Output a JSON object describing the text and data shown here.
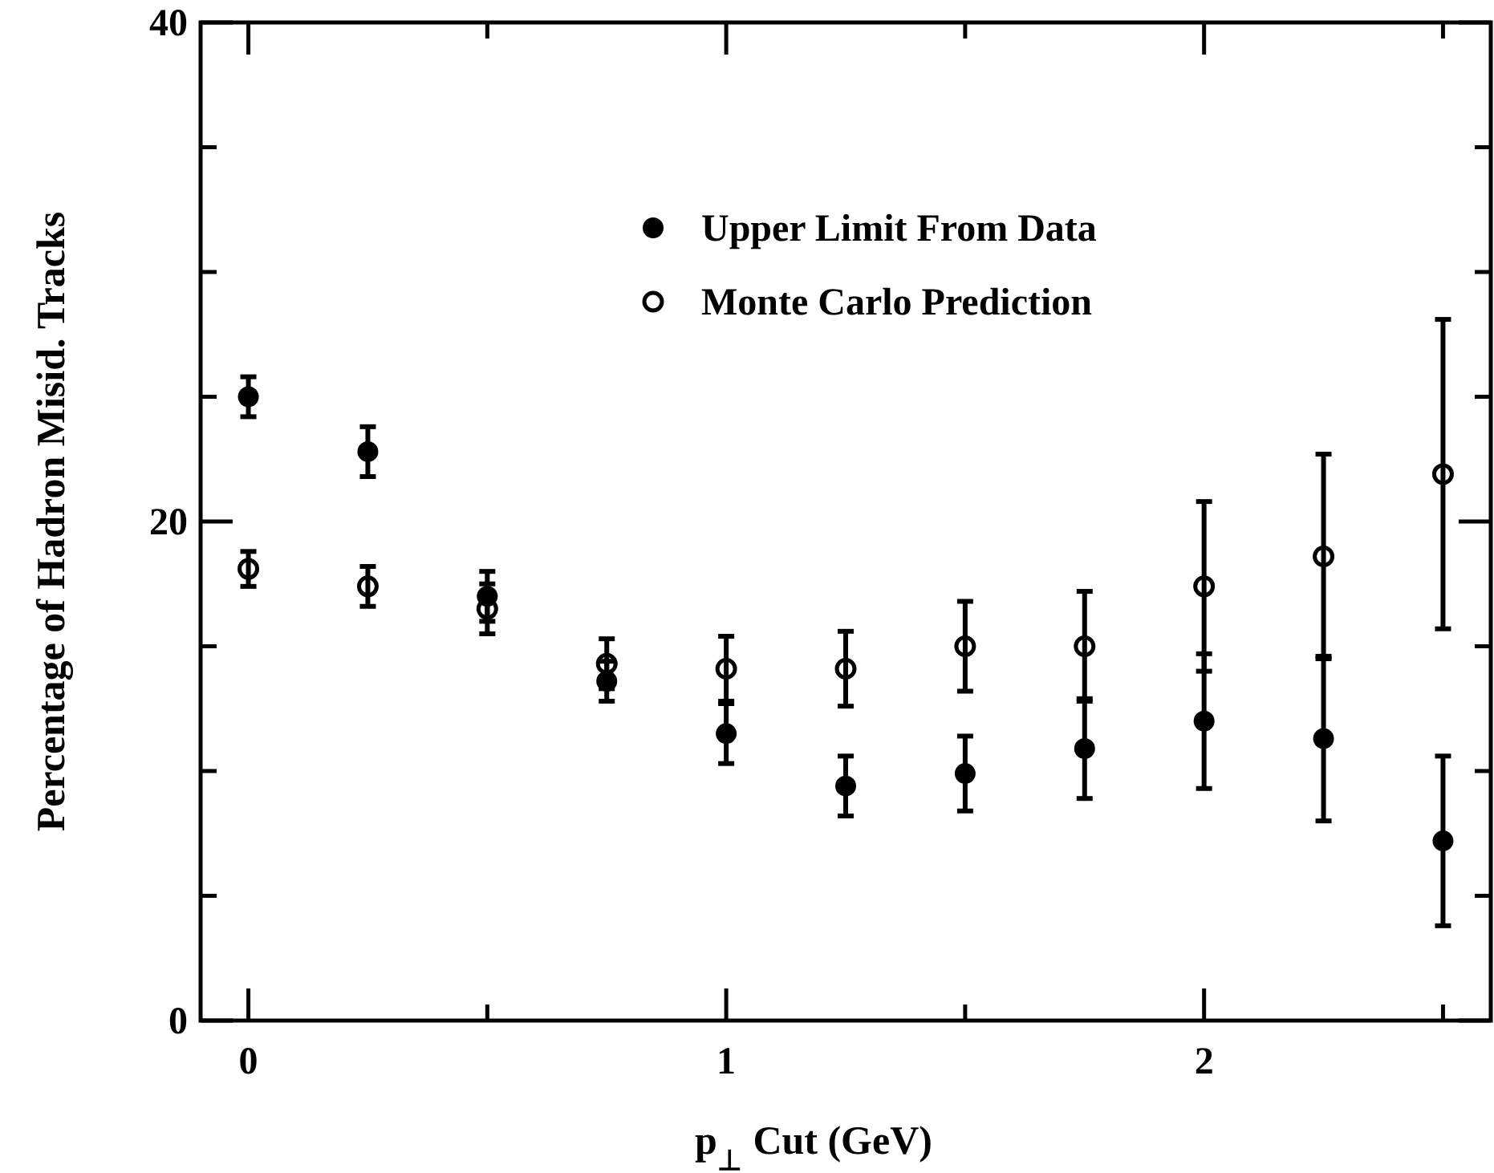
{
  "chart_data": {
    "type": "scatter",
    "xlabel": "p$_{⊥}$ Cut (GeV)",
    "ylabel": "Percentage of Hadron Misid. Tracks",
    "x": [
      0,
      0.25,
      0.5,
      0.75,
      1,
      1.25,
      1.5,
      1.75,
      2,
      2.25,
      2.5
    ],
    "series": [
      {
        "name": "Upper Limit From Data",
        "color": "#000000",
        "marker": "circle",
        "values": [
          25.0,
          22.8,
          17.0,
          13.6,
          11.5,
          9.4,
          9.9,
          10.9,
          12.0,
          11.3,
          7.2
        ],
        "errors": [
          0.8,
          1.0,
          1.0,
          0.8,
          1.2,
          1.2,
          1.5,
          2.0,
          2.7,
          3.3,
          3.4
        ]
      },
      {
        "name": "Monte Carlo Prediction",
        "color": "#000000",
        "marker": "open_circle",
        "values": [
          18.1,
          17.4,
          16.5,
          14.3,
          14.1,
          14.1,
          15.0,
          15.0,
          17.4,
          18.6,
          21.9
        ],
        "errors": [
          0.7,
          0.8,
          1.0,
          1.0,
          1.3,
          1.5,
          1.8,
          2.2,
          3.4,
          4.1,
          6.2
        ]
      }
    ],
    "xlim": [
      -0.1,
      2.6
    ],
    "xticks": [
      0,
      {
        "value": 0.5,
        "label": null
      },
      1,
      {
        "value": 1.5,
        "label": null
      },
      2,
      {
        "value": 2.5,
        "label": null
      }
    ],
    "ylim": [
      0,
      40
    ],
    "yticks": [
      0,
      {
        "value": 5,
        "label": null
      },
      {
        "value": 10,
        "label": null
      },
      {
        "value": 15,
        "label": null
      },
      20,
      {
        "value": 25,
        "label": null
      },
      {
        "value": 30,
        "label": null
      },
      {
        "value": 35,
        "label": null
      },
      40
    ],
    "legend": "top right",
    "grid": false
  }
}
